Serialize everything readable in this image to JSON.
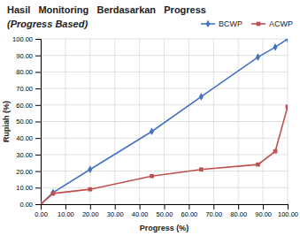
{
  "chart_data": {
    "type": "line",
    "title": "Hasil   Monitoring   Berdasarkan   Progress",
    "subtitle": "(Progress Based)",
    "xlabel": "Progress (%)",
    "ylabel": "Rupiah (%)",
    "x": [
      0.0,
      5.0,
      20.0,
      45.0,
      65.0,
      88.0,
      95.0,
      100.0
    ],
    "series": [
      {
        "name": "BCWP",
        "color": "#4472C4",
        "marker": "diamond",
        "line_style": "solid",
        "values": [
          0.0,
          7.0,
          21.0,
          44.0,
          65.0,
          89.0,
          95.0,
          100.0
        ]
      },
      {
        "name": "ACWP",
        "color": "#C0504D",
        "marker": "square",
        "line_style": "solid",
        "values": [
          0.0,
          6.5,
          9.0,
          17.0,
          21.0,
          24.0,
          32.0,
          59.0
        ]
      }
    ],
    "xlim": [
      0,
      100
    ],
    "ylim": [
      0,
      100
    ],
    "xticks": [
      {
        "value": 0,
        "label": "0.00"
      },
      {
        "value": 10,
        "label": "10.00"
      },
      {
        "value": 20,
        "label": "20.00"
      },
      {
        "value": 30,
        "label": "30.00"
      },
      {
        "value": 40,
        "label": "40.00"
      },
      {
        "value": 50,
        "label": "50.00"
      },
      {
        "value": 60,
        "label": "60.00"
      },
      {
        "value": 70,
        "label": "70.00"
      },
      {
        "value": 80,
        "label": "80.00"
      },
      {
        "value": 90,
        "label": "90.00"
      },
      {
        "value": 100,
        "label": "100.00"
      }
    ],
    "yticks": [
      {
        "value": 0,
        "label": "0.00"
      },
      {
        "value": 10,
        "label": "10.00"
      },
      {
        "value": 20,
        "label": "20.00"
      },
      {
        "value": 30,
        "label": "30.00"
      },
      {
        "value": 40,
        "label": "40.00"
      },
      {
        "value": 50,
        "label": "50.00"
      },
      {
        "value": 60,
        "label": "60.00"
      },
      {
        "value": 70,
        "label": "70.00"
      },
      {
        "value": 80,
        "label": "80.00"
      },
      {
        "value": 90,
        "label": "90.00"
      },
      {
        "value": 100,
        "label": "100.00"
      }
    ],
    "grid": true,
    "legend": "top-right"
  }
}
